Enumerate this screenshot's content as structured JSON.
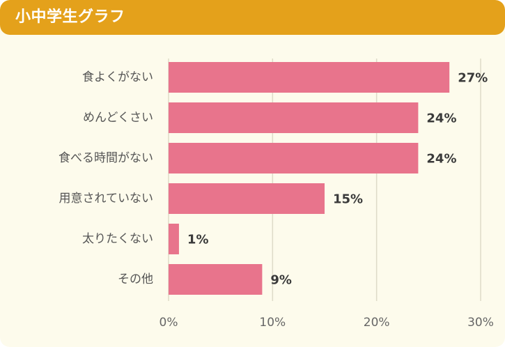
{
  "header": {
    "title": "小中学生グラフ"
  },
  "colors": {
    "header_bg": "#e4a11b",
    "panel_bg": "#fdfbec",
    "bar": "#e8748c",
    "grid": "#dedbc8"
  },
  "chart_data": {
    "type": "bar",
    "orientation": "horizontal",
    "title": "小中学生グラフ",
    "categories": [
      "食よくがない",
      "めんどくさい",
      "食べる時間がない",
      "用意されていない",
      "太りたくない",
      "その他"
    ],
    "values": [
      27,
      24,
      24,
      15,
      1,
      9
    ],
    "value_labels": [
      "27%",
      "24%",
      "24%",
      "15%",
      "1%",
      "9%"
    ],
    "xlim": [
      0,
      30
    ],
    "xticks": [
      0,
      10,
      20,
      30
    ],
    "xtick_labels": [
      "0%",
      "10%",
      "20%",
      "30%"
    ],
    "grid": true,
    "legend": "none"
  }
}
